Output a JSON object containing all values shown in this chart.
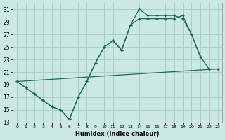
{
  "xlabel": "Humidex (Indice chaleur)",
  "bg_color": "#cce8e4",
  "grid_color": "#aacfcb",
  "line_color": "#1a6b5a",
  "xlim": [
    -0.5,
    23.5
  ],
  "ylim": [
    13,
    32
  ],
  "yticks": [
    13,
    15,
    17,
    19,
    21,
    23,
    25,
    27,
    29,
    31
  ],
  "xticks": [
    0,
    1,
    2,
    3,
    4,
    5,
    6,
    7,
    8,
    9,
    10,
    11,
    12,
    13,
    14,
    15,
    16,
    17,
    18,
    19,
    20,
    21,
    22,
    23
  ],
  "line1_x": [
    0,
    1,
    2,
    3,
    4,
    5,
    6,
    7,
    8,
    9,
    10,
    11,
    12,
    13,
    14,
    15,
    16,
    17,
    18,
    19,
    20,
    21
  ],
  "line1_y": [
    19.5,
    18.5,
    17.5,
    16.5,
    15.5,
    15.0,
    13.5,
    17.0,
    19.5,
    22.5,
    25.0,
    26.0,
    24.5,
    28.5,
    31.0,
    30.0,
    30.0,
    30.0,
    30.0,
    29.5,
    27.0,
    23.5
  ],
  "line2_x": [
    0,
    1,
    2,
    3,
    4,
    5,
    6,
    7,
    8,
    9,
    10,
    11,
    12,
    13,
    14,
    15,
    16,
    17,
    18,
    19,
    20,
    21,
    22,
    23
  ],
  "line2_y": [
    19.5,
    18.5,
    17.5,
    16.5,
    15.5,
    15.0,
    13.5,
    17.0,
    19.5,
    22.5,
    25.0,
    26.0,
    24.5,
    28.5,
    29.5,
    29.5,
    29.5,
    29.5,
    29.5,
    30.0,
    27.0,
    23.5,
    21.5,
    21.5
  ],
  "line3_x": [
    0,
    23
  ],
  "line3_y": [
    19.5,
    21.5
  ]
}
